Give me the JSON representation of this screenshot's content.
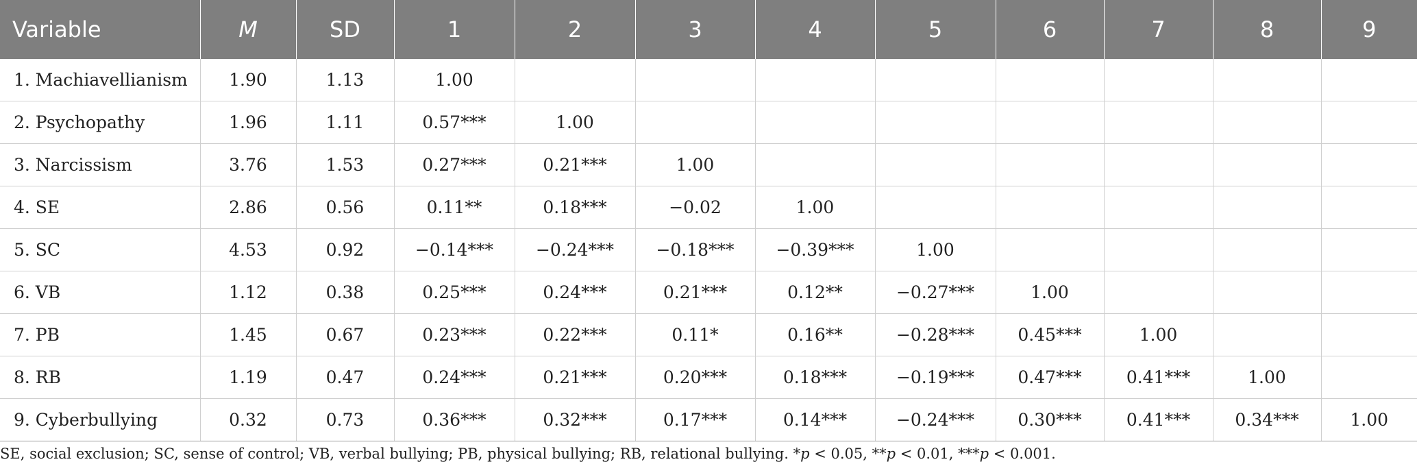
{
  "table": {
    "headers": [
      "Variable",
      "M",
      "SD",
      "1",
      "2",
      "3",
      "4",
      "5",
      "6",
      "7",
      "8",
      "9"
    ],
    "rows": [
      [
        "1.  Machiavellianism",
        "1.90",
        "1.13",
        "1.00",
        "",
        "",
        "",
        "",
        "",
        "",
        "",
        ""
      ],
      [
        "2.  Psychopathy",
        "1.96",
        "1.11",
        "0.57***",
        "1.00",
        "",
        "",
        "",
        "",
        "",
        "",
        ""
      ],
      [
        "3.  Narcissism",
        "3.76",
        "1.53",
        "0.27***",
        "0.21***",
        "1.00",
        "",
        "",
        "",
        "",
        "",
        ""
      ],
      [
        "4.  SE",
        "2.86",
        "0.56",
        "0.11**",
        "0.18***",
        "−0.02",
        "1.00",
        "",
        "",
        "",
        "",
        ""
      ],
      [
        "5.  SC",
        "4.53",
        "0.92",
        "−0.14***",
        "−0.24***",
        "−0.18***",
        "−0.39***",
        "1.00",
        "",
        "",
        "",
        ""
      ],
      [
        "6.  VB",
        "1.12",
        "0.38",
        "0.25***",
        "0.24***",
        "0.21***",
        "0.12**",
        "−0.27***",
        "1.00",
        "",
        "",
        ""
      ],
      [
        "7.  PB",
        "1.45",
        "0.67",
        "0.23***",
        "0.22***",
        "0.11*",
        "0.16**",
        "−0.28***",
        "0.45***",
        "1.00",
        "",
        ""
      ],
      [
        "8.  RB",
        "1.19",
        "0.47",
        "0.24***",
        "0.21***",
        "0.20***",
        "0.18***",
        "−0.19***",
        "0.47***",
        "0.41***",
        "1.00",
        ""
      ],
      [
        "9.  Cyberbullying",
        "0.32",
        "0.73",
        "0.36***",
        "0.32***",
        "0.17***",
        "0.14***",
        "−0.24***",
        "0.30***",
        "0.41***",
        "0.34***",
        "1.00"
      ]
    ]
  },
  "note": {
    "abbreviations": "SE, social exclusion; SC, sense of control; VB, verbal bullying; PB, physical bullying; RB, relational bullying. ",
    "sig1_stars": "*",
    "sig1_rest": " < 0.05, ",
    "sig2_stars": "**",
    "sig2_rest": " < 0.01, ",
    "sig3_stars": "***",
    "sig3_rest": " < 0.001.",
    "p_symbol": "p"
  },
  "colors": {
    "header_bg": "#7f7f7f",
    "header_text": "#ffffff",
    "grid": "#cfcfcf"
  }
}
